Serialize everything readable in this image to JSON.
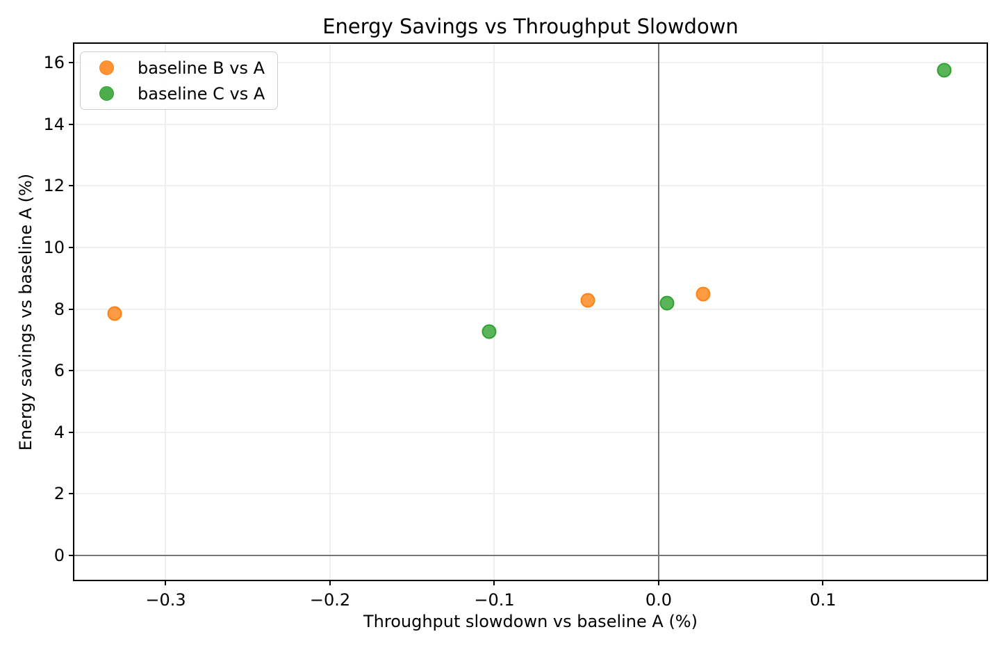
{
  "chart_data": {
    "type": "scatter",
    "title": "Energy Savings vs Throughput Slowdown",
    "xlabel": "Throughput slowdown vs baseline A (%)",
    "ylabel": "Energy savings vs baseline A (%)",
    "xlim": [
      -0.3556,
      0.1996
    ],
    "ylim": [
      -0.79,
      16.61
    ],
    "x_ticks": [
      -0.3,
      -0.2,
      -0.1,
      0.0,
      0.1
    ],
    "x_tick_labels": [
      "−0.3",
      "−0.2",
      "−0.1",
      "0.0",
      "0.1"
    ],
    "y_ticks": [
      0,
      2,
      4,
      6,
      8,
      10,
      12,
      14,
      16
    ],
    "y_tick_labels": [
      "0",
      "2",
      "4",
      "6",
      "8",
      "10",
      "12",
      "14",
      "16"
    ],
    "grid": true,
    "zero_line_x": 0,
    "zero_line_y": 0,
    "legend_position": "upper left",
    "series": [
      {
        "name": "baseline B vs A",
        "color": "#ff7f0e",
        "points": [
          {
            "x": -0.331,
            "y": 7.85
          },
          {
            "x": -0.043,
            "y": 8.28
          },
          {
            "x": 0.027,
            "y": 8.49
          }
        ]
      },
      {
        "name": "baseline C vs A",
        "color": "#2ca02c",
        "points": [
          {
            "x": -0.103,
            "y": 7.27
          },
          {
            "x": 0.005,
            "y": 8.19
          },
          {
            "x": 0.174,
            "y": 15.76
          }
        ]
      }
    ]
  }
}
